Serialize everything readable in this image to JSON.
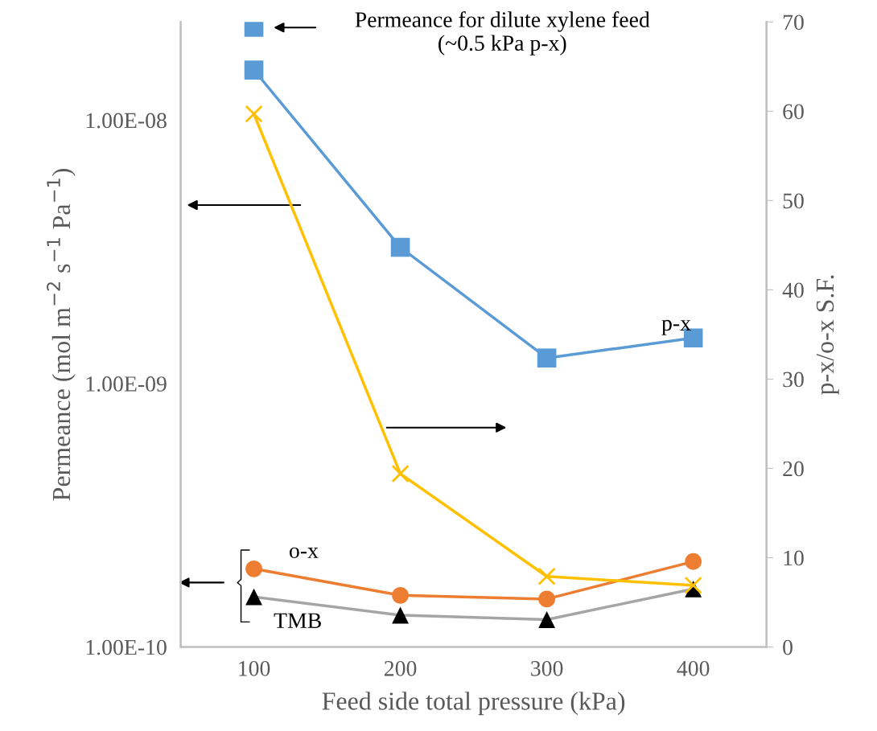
{
  "chart_data": {
    "type": "line",
    "xlabel": "Feed side total pressure (kPa)",
    "ylabel": "Permeance (mol m$^{−2}$ s$^{−1}$ Pa$^{−1}$)",
    "y2label": "p-x/o-x S.F.",
    "x": [
      100,
      200,
      300,
      400
    ],
    "xlim": [
      50,
      450
    ],
    "xticks": [
      100,
      200,
      300,
      400
    ],
    "log": "y",
    "ylim": [
      1e-10,
      2.36e-08
    ],
    "yticks": [
      {
        "value": 1e-10,
        "label": "1.00E-10"
      },
      {
        "value": 1e-09,
        "label": "1.00E-09"
      },
      {
        "value": 1e-08,
        "label": "1.00E-08"
      }
    ],
    "y2lim": [
      0,
      70
    ],
    "y2ticks": [
      0,
      10,
      20,
      30,
      40,
      50,
      60,
      70
    ],
    "grid": false,
    "legend": false,
    "series": [
      {
        "color": "#5b9bd5",
        "marker": "square",
        "values": [
          1.55e-08,
          3.29e-09,
          1.25e-09,
          1.49e-09
        ]
      },
      {
        "color": "#ed7d31",
        "marker": "circle",
        "values": [
          1.98e-10,
          1.57e-10,
          1.52e-10,
          2.11e-10
        ]
      },
      {
        "color": "#a5a5a5",
        "colors": [
          "#000000",
          "#000000",
          "#000000",
          "#000000"
        ],
        "marker": "triangle",
        "values": [
          1.55e-10,
          1.32e-10,
          1.27e-10,
          1.66e-10
        ]
      },
      {
        "color": "#ffc000",
        "marker": "cross",
        "axis": "y2",
        "values": [
          59.7,
          19.4,
          7.9,
          6.9
        ]
      },
      {
        "type": "scatter",
        "color": "#5b9bd5",
        "marker": "square",
        "x": [
          100
        ],
        "values": [
          2.25e-08
        ]
      }
    ],
    "annotations": [
      "p-x",
      "o-x",
      "TMB",
      "Permeance for dilute xylene feed\n(~0.5 kPa p-x)"
    ]
  }
}
